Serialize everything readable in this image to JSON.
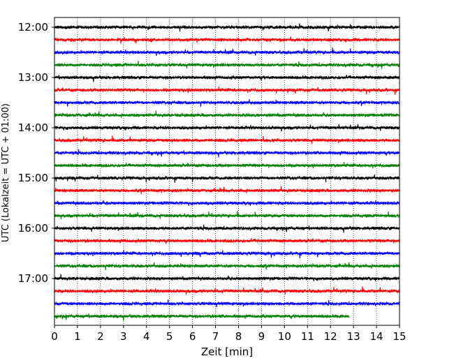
{
  "chart_data": {
    "type": "line",
    "title": "",
    "xlabel": "Zeit  [min]",
    "ylabel": "UTC (Lokalzeit = UTC + 01:00)",
    "xlim": [
      0,
      15
    ],
    "x_ticks": [
      "0",
      "1",
      "2",
      "3",
      "4",
      "5",
      "6",
      "7",
      "8",
      "9",
      "10",
      "11",
      "12",
      "13",
      "14",
      "15"
    ],
    "y_ticks": [
      "12:00",
      "13:00",
      "14:00",
      "15:00",
      "16:00",
      "17:00"
    ],
    "grid": "vertical-dotted",
    "trace_interval_minutes": 15,
    "traces": [
      {
        "start": "12:00",
        "color": "#000000",
        "length_min": 15
      },
      {
        "start": "12:15",
        "color": "#ff0000",
        "length_min": 15
      },
      {
        "start": "12:30",
        "color": "#0000ff",
        "length_min": 15
      },
      {
        "start": "12:45",
        "color": "#008000",
        "length_min": 15
      },
      {
        "start": "13:00",
        "color": "#000000",
        "length_min": 15
      },
      {
        "start": "13:15",
        "color": "#ff0000",
        "length_min": 15
      },
      {
        "start": "13:30",
        "color": "#0000ff",
        "length_min": 15
      },
      {
        "start": "13:45",
        "color": "#008000",
        "length_min": 15
      },
      {
        "start": "14:00",
        "color": "#000000",
        "length_min": 15
      },
      {
        "start": "14:15",
        "color": "#ff0000",
        "length_min": 15
      },
      {
        "start": "14:30",
        "color": "#0000ff",
        "length_min": 15
      },
      {
        "start": "14:45",
        "color": "#008000",
        "length_min": 15
      },
      {
        "start": "15:00",
        "color": "#000000",
        "length_min": 15
      },
      {
        "start": "15:15",
        "color": "#ff0000",
        "length_min": 15
      },
      {
        "start": "15:30",
        "color": "#0000ff",
        "length_min": 15
      },
      {
        "start": "15:45",
        "color": "#008000",
        "length_min": 15
      },
      {
        "start": "16:00",
        "color": "#000000",
        "length_min": 15
      },
      {
        "start": "16:15",
        "color": "#ff0000",
        "length_min": 15
      },
      {
        "start": "16:30",
        "color": "#0000ff",
        "length_min": 15
      },
      {
        "start": "16:45",
        "color": "#008000",
        "length_min": 15
      },
      {
        "start": "17:00",
        "color": "#000000",
        "length_min": 15
      },
      {
        "start": "17:15",
        "color": "#ff0000",
        "length_min": 15
      },
      {
        "start": "17:30",
        "color": "#0000ff",
        "length_min": 15
      },
      {
        "start": "17:45",
        "color": "#008000",
        "length_min": 12.8
      }
    ]
  }
}
